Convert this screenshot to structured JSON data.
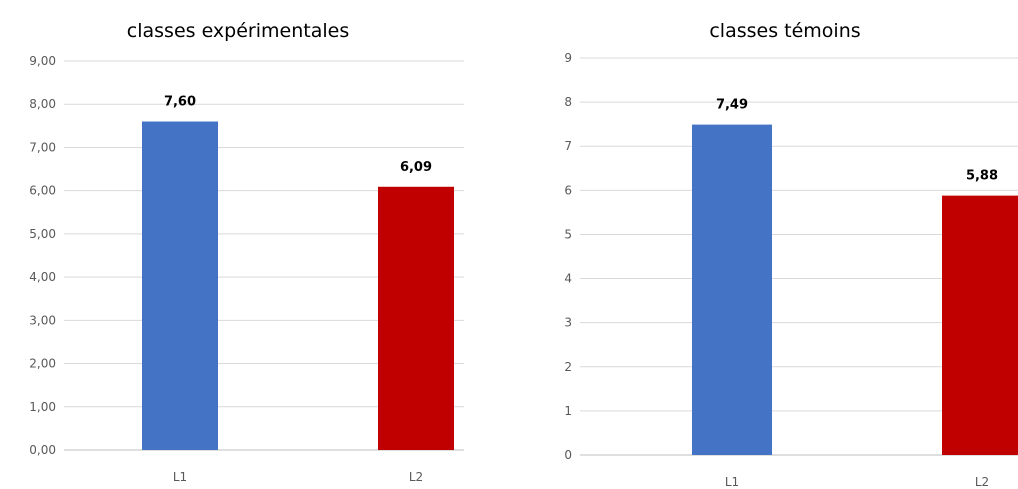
{
  "chart_data": [
    {
      "type": "bar",
      "title": "classes expérimentales",
      "xlabel": "",
      "ylabel": "",
      "categories": [
        "L1",
        "L2"
      ],
      "values": [
        7.6,
        6.09
      ],
      "value_labels": [
        "7,60",
        "6,09"
      ],
      "colors": [
        "#4472C4",
        "#C00000"
      ],
      "ylim": [
        0,
        9
      ],
      "yticks": [
        "0,00",
        "1,00",
        "2,00",
        "3,00",
        "4,00",
        "5,00",
        "6,00",
        "7,00",
        "8,00",
        "9,00"
      ],
      "grid": true,
      "legend": "none"
    },
    {
      "type": "bar",
      "title": "classes témoins",
      "xlabel": "",
      "ylabel": "",
      "categories": [
        "L1",
        "L2"
      ],
      "values": [
        7.49,
        5.88
      ],
      "value_labels": [
        "7,49",
        "5,88"
      ],
      "colors": [
        "#4472C4",
        "#C00000"
      ],
      "ylim": [
        0,
        9
      ],
      "yticks": [
        "0",
        "1",
        "2",
        "3",
        "4",
        "5",
        "6",
        "7",
        "8",
        "9"
      ],
      "grid": true,
      "legend": "none"
    }
  ]
}
